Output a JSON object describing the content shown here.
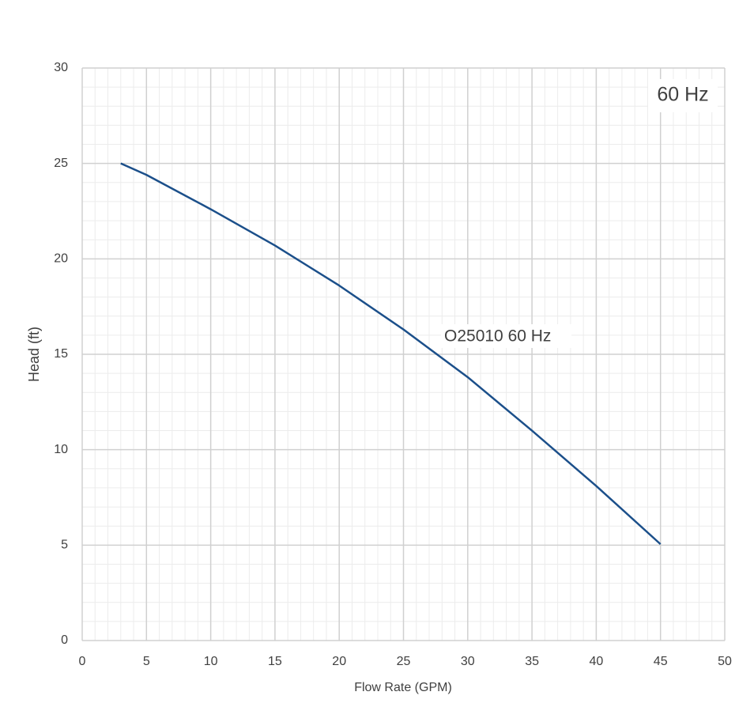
{
  "chart_data": {
    "type": "line",
    "annotation": "60 Hz",
    "x_label": "Flow Rate (GPM)",
    "y_label": "Head (ft)",
    "x": [
      3,
      5,
      10,
      15,
      20,
      25,
      30,
      35,
      40,
      45
    ],
    "series": [
      {
        "name": "O25010 60 Hz",
        "color": "#1b4f8a",
        "values": [
          25,
          24.4,
          22.6,
          20.7,
          18.6,
          16.3,
          13.8,
          11.0,
          8.1,
          5.05
        ]
      }
    ],
    "xlim": [
      0,
      50
    ],
    "xticks": [
      0,
      5,
      10,
      15,
      20,
      25,
      30,
      35,
      40,
      45,
      50
    ],
    "ylim": [
      0,
      30
    ],
    "yticks": [
      0,
      5,
      10,
      15,
      20,
      25,
      30
    ],
    "grid": true,
    "minor_grid": true
  }
}
